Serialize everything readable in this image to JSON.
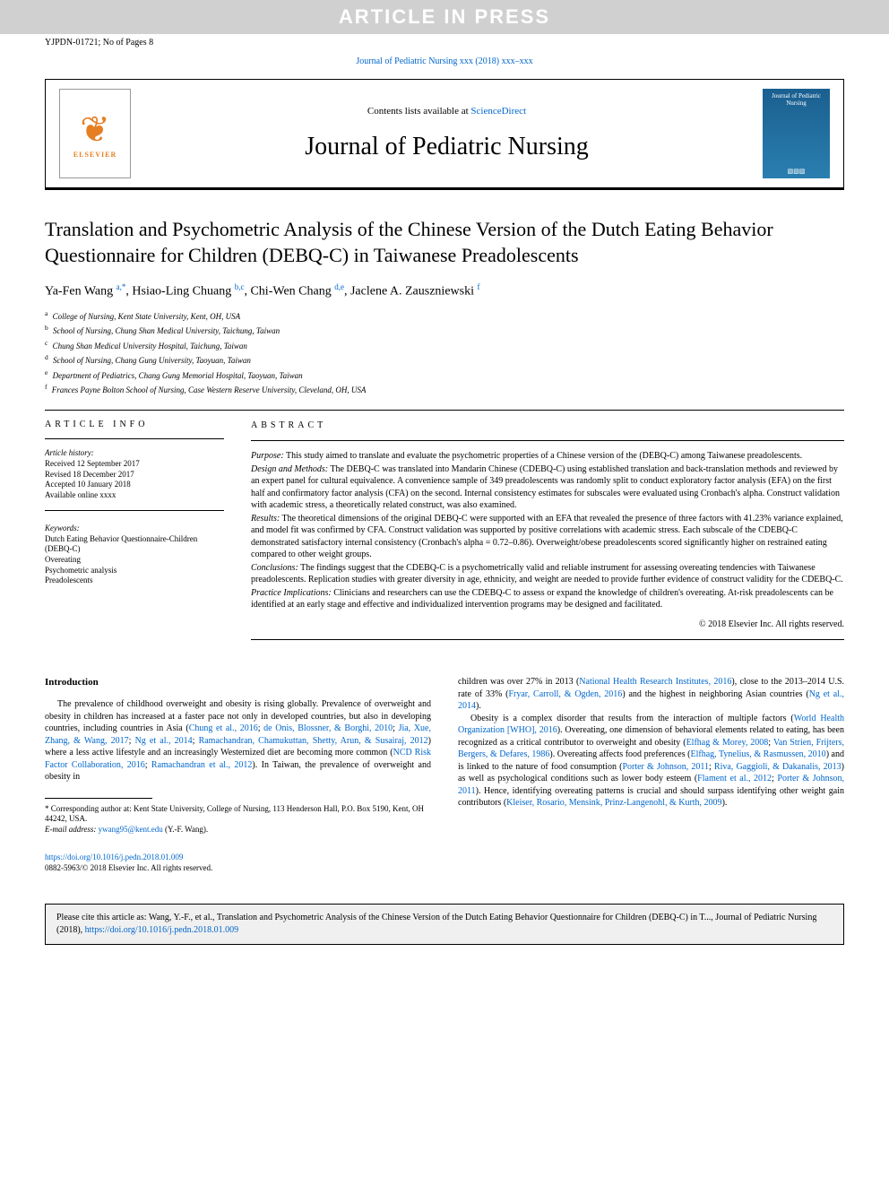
{
  "banner": "ARTICLE IN PRESS",
  "header": {
    "left": "YJPDN-01721; No of Pages 8",
    "right": ""
  },
  "citation_line": {
    "text": "Journal of Pediatric Nursing xxx (2018) xxx–xxx",
    "href": "#"
  },
  "journal_box": {
    "contents_prefix": "Contents lists available at ",
    "contents_link": "ScienceDirect",
    "journal_name": "Journal of Pediatric Nursing",
    "elsevier": "ELSEVIER",
    "cover_top": "Journal of Pediatric Nursing"
  },
  "title": "Translation and Psychometric Analysis of the Chinese Version of the Dutch Eating Behavior Questionnaire for Children (DEBQ-C) in Taiwanese Preadolescents",
  "authors_html": "Ya-Fen Wang <sup>a,*</sup>, Hsiao-Ling Chuang <sup>b,c</sup>, Chi-Wen Chang <sup>d,e</sup>, Jaclene A. Zauszniewski <sup>f</sup>",
  "affiliations": [
    {
      "sup": "a",
      "text": "College of Nursing, Kent State University, Kent, OH, USA"
    },
    {
      "sup": "b",
      "text": "School of Nursing, Chung Shan Medical University, Taichung, Taiwan"
    },
    {
      "sup": "c",
      "text": "Chung Shan Medical University Hospital, Taichung, Taiwan"
    },
    {
      "sup": "d",
      "text": "School of Nursing, Chang Gung University, Taoyuan, Taiwan"
    },
    {
      "sup": "e",
      "text": "Department of Pediatrics, Chang Gung Memorial Hospital, Taoyuan, Taiwan"
    },
    {
      "sup": "f",
      "text": "Frances Payne Bolton School of Nursing, Case Western Reserve University, Cleveland, OH, USA"
    }
  ],
  "article_info": {
    "heading": "ARTICLE INFO",
    "history_label": "Article history:",
    "history": [
      "Received 12 September 2017",
      "Revised 18 December 2017",
      "Accepted 10 January 2018",
      "Available online xxxx"
    ],
    "keywords_label": "Keywords:",
    "keywords": [
      "Dutch Eating Behavior Questionnaire-Children (DEBQ-C)",
      "Overeating",
      "Psychometric analysis",
      "Preadolescents"
    ]
  },
  "abstract": {
    "heading": "ABSTRACT",
    "paragraphs": [
      {
        "label": "Purpose:",
        "text": " This study aimed to translate and evaluate the psychometric properties of a Chinese version of the (DEBQ-C) among Taiwanese preadolescents."
      },
      {
        "label": "Design and Methods:",
        "text": " The DEBQ-C was translated into Mandarin Chinese (CDEBQ-C) using established translation and back-translation methods and reviewed by an expert panel for cultural equivalence. A convenience sample of 349 preadolescents was randomly split to conduct exploratory factor analysis (EFA) on the first half and confirmatory factor analysis (CFA) on the second. Internal consistency estimates for subscales were evaluated using Cronbach's alpha. Construct validation with academic stress, a theoretically related construct, was also examined."
      },
      {
        "label": "Results:",
        "text": " The theoretical dimensions of the original DEBQ-C were supported with an EFA that revealed the presence of three factors with 41.23% variance explained, and model fit was confirmed by CFA. Construct validation was supported by positive correlations with academic stress. Each subscale of the CDEBQ-C demonstrated satisfactory internal consistency (Cronbach's alpha = 0.72–0.86). Overweight/obese preadolescents scored significantly higher on restrained eating compared to other weight groups."
      },
      {
        "label": "Conclusions:",
        "text": " The findings suggest that the CDEBQ-C is a psychometrically valid and reliable instrument for assessing overeating tendencies with Taiwanese preadolescents. Replication studies with greater diversity in age, ethnicity, and weight are needed to provide further evidence of construct validity for the CDEBQ-C."
      },
      {
        "label": "Practice Implications:",
        "text": " Clinicians and researchers can use the CDEBQ-C to assess or expand the knowledge of children's overeating. At-risk preadolescents can be identified at an early stage and effective and individualized intervention programs may be designed and facilitated."
      }
    ],
    "copyright": "© 2018 Elsevier Inc. All rights reserved."
  },
  "intro_heading": "Introduction",
  "col1_html": "The prevalence of childhood overweight and obesity is rising globally. Prevalence of overweight and obesity in children has increased at a faster pace not only in developed countries, but also in developing countries, including countries in Asia (<a class='link' href='#'>Chung et al., 2016</a>; <a class='link' href='#'>de Onis, Blossner, &amp; Borghi, 2010</a>; <a class='link' href='#'>Jia, Xue, Zhang, &amp; Wang, 2017</a>; <a class='link' href='#'>Ng et al., 2014</a>; <a class='link' href='#'>Ramachandran, Chamukuttan, Shetty, Arun, &amp; Susairaj, 2012</a>) where a less active lifestyle and an increasingly Westernized diet are becoming more common (<a class='link' href='#'>NCD Risk Factor Collaboration, 2016</a>; <a class='link' href='#'>Ramachandran et al., 2012</a>). In Taiwan, the prevalence of overweight and obesity in",
  "col2_p1_html": "children was over 27% in 2013 (<a class='link' href='#'>National Health Research Institutes, 2016</a>), close to the 2013–2014 U.S. rate of 33% (<a class='link' href='#'>Fryar, Carroll, &amp; Ogden, 2016</a>) and the highest in neighboring Asian countries (<a class='link' href='#'>Ng et al., 2014</a>).",
  "col2_p2_html": "Obesity is a complex disorder that results from the interaction of multiple factors (<a class='link' href='#'>World Health Organization [WHO], 2016</a>). Overeating, one dimension of behavioral elements related to eating, has been recognized as a critical contributor to overweight and obesity (<a class='link' href='#'>Elfhag &amp; Morey, 2008</a>; <a class='link' href='#'>Van Strien, Frijters, Bergers, &amp; Defares, 1986</a>). Overeating affects food preferences (<a class='link' href='#'>Elfhag, Tynelius, &amp; Rasmussen, 2010</a>) and is linked to the nature of food consumption (<a class='link' href='#'>Porter &amp; Johnson, 2011</a>; <a class='link' href='#'>Riva, Gaggioli, &amp; Dakanalis, 2013</a>) as well as psychological conditions such as lower body esteem (<a class='link' href='#'>Flament et al., 2012</a>; <a class='link' href='#'>Porter &amp; Johnson, 2011</a>). Hence, identifying overeating patterns is crucial and should surpass identifying other weight gain contributors (<a class='link' href='#'>Kleiser, Rosario, Mensink, Prinz-Langenohl, &amp; Kurth, 2009</a>).",
  "footnote": {
    "corr": "* Corresponding author at: Kent State University, College of Nursing, 113 Henderson Hall, P.O. Box 5190, Kent, OH 44242, USA.",
    "email_label": "E-mail address: ",
    "email": "ywang95@kent.edu",
    "email_suffix": " (Y.-F. Wang)."
  },
  "doi": {
    "url": "https://doi.org/10.1016/j.pedn.2018.01.009",
    "line2": "0882-5963/© 2018 Elsevier Inc. All rights reserved."
  },
  "cite_box": {
    "text": "Please cite this article as: Wang, Y.-F., et al., Translation and Psychometric Analysis of the Chinese Version of the Dutch Eating Behavior Questionnaire for Children (DEBQ-C) in T..., Journal of Pediatric Nursing (2018), ",
    "url": "https://doi.org/10.1016/j.pedn.2018.01.009"
  },
  "colors": {
    "link": "#0066cc",
    "banner_bg": "#d0d0d0",
    "elsevier_orange": "#e67e22",
    "citebox_bg": "#f0f0f0"
  }
}
